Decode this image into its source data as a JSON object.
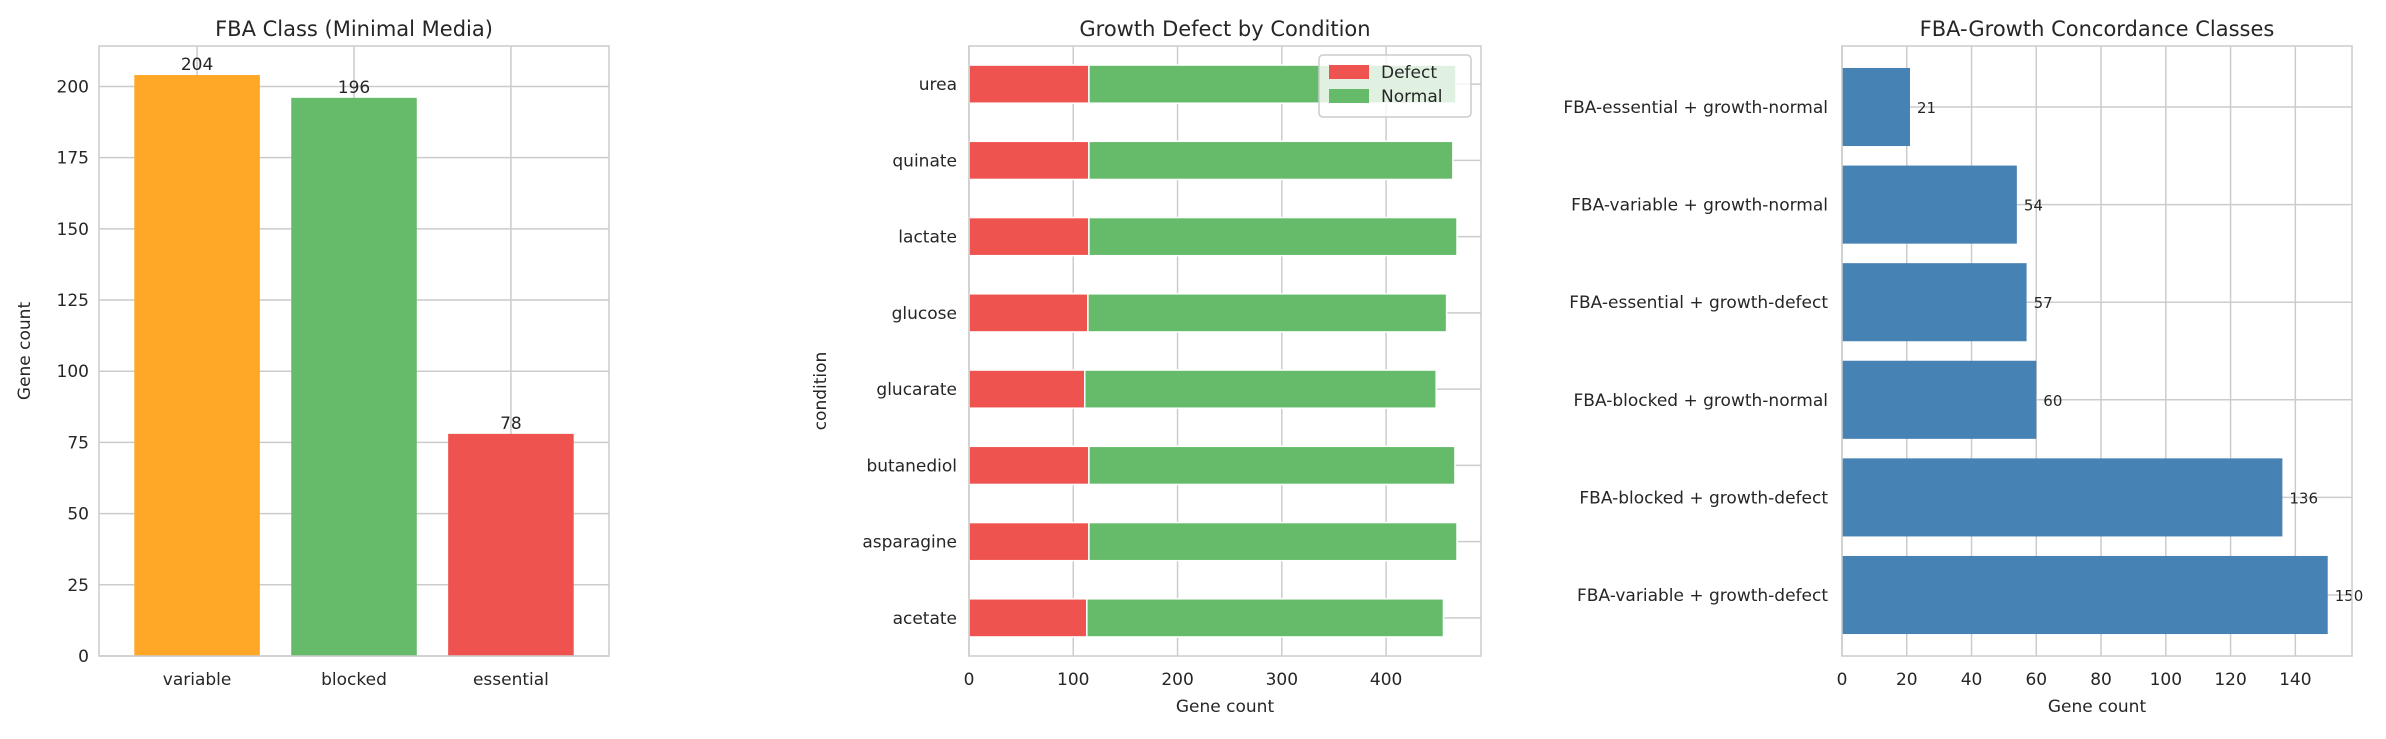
{
  "chart_data": [
    {
      "type": "bar",
      "title": "FBA Class (Minimal Media)",
      "xlabel": "",
      "ylabel": "Gene count",
      "categories": [
        "variable",
        "blocked",
        "essential"
      ],
      "values": [
        204,
        196,
        78
      ],
      "data_labels": [
        "204",
        "196",
        "78"
      ],
      "colors": [
        "#FFA726",
        "#66BB6A",
        "#EF5350"
      ],
      "ylim": [
        0,
        214.2
      ],
      "yticks": [
        0,
        25,
        50,
        75,
        100,
        125,
        150,
        175,
        200
      ],
      "grid": true
    },
    {
      "type": "bar",
      "orientation": "horizontal",
      "stacked": true,
      "title": "Growth Defect by Condition",
      "xlabel": "Gene count",
      "ylabel": "condition",
      "categories": [
        "acetate",
        "asparagine",
        "butanediol",
        "glucarate",
        "glucose",
        "lactate",
        "quinate",
        "urea"
      ],
      "series": [
        {
          "name": "Defect",
          "color": "#EF5350",
          "values": [
            113,
            115,
            115,
            111,
            114,
            115,
            115,
            115
          ]
        },
        {
          "name": "Normal",
          "color": "#66BB6A",
          "values": [
            342,
            353,
            351,
            337,
            344,
            353,
            349,
            352
          ]
        }
      ],
      "xlim": [
        0,
        491
      ],
      "xticks": [
        0,
        100,
        200,
        300,
        400
      ],
      "legend": "top-right",
      "grid": true
    },
    {
      "type": "bar",
      "orientation": "horizontal",
      "title": "FBA-Growth Concordance Classes",
      "xlabel": "Gene count",
      "ylabel": "",
      "categories": [
        "FBA-variable + growth-defect",
        "FBA-blocked + growth-defect",
        "FBA-blocked + growth-normal",
        "FBA-essential + growth-defect",
        "FBA-variable + growth-normal",
        "FBA-essential + growth-normal"
      ],
      "values": [
        150,
        136,
        60,
        57,
        54,
        21
      ],
      "data_labels": [
        "150",
        "136",
        "60",
        "57",
        "54",
        "21"
      ],
      "color": "#4682B4",
      "xlim": [
        0,
        157.5
      ],
      "xticks": [
        0,
        20,
        40,
        60,
        80,
        100,
        120,
        140
      ],
      "grid": true
    }
  ]
}
